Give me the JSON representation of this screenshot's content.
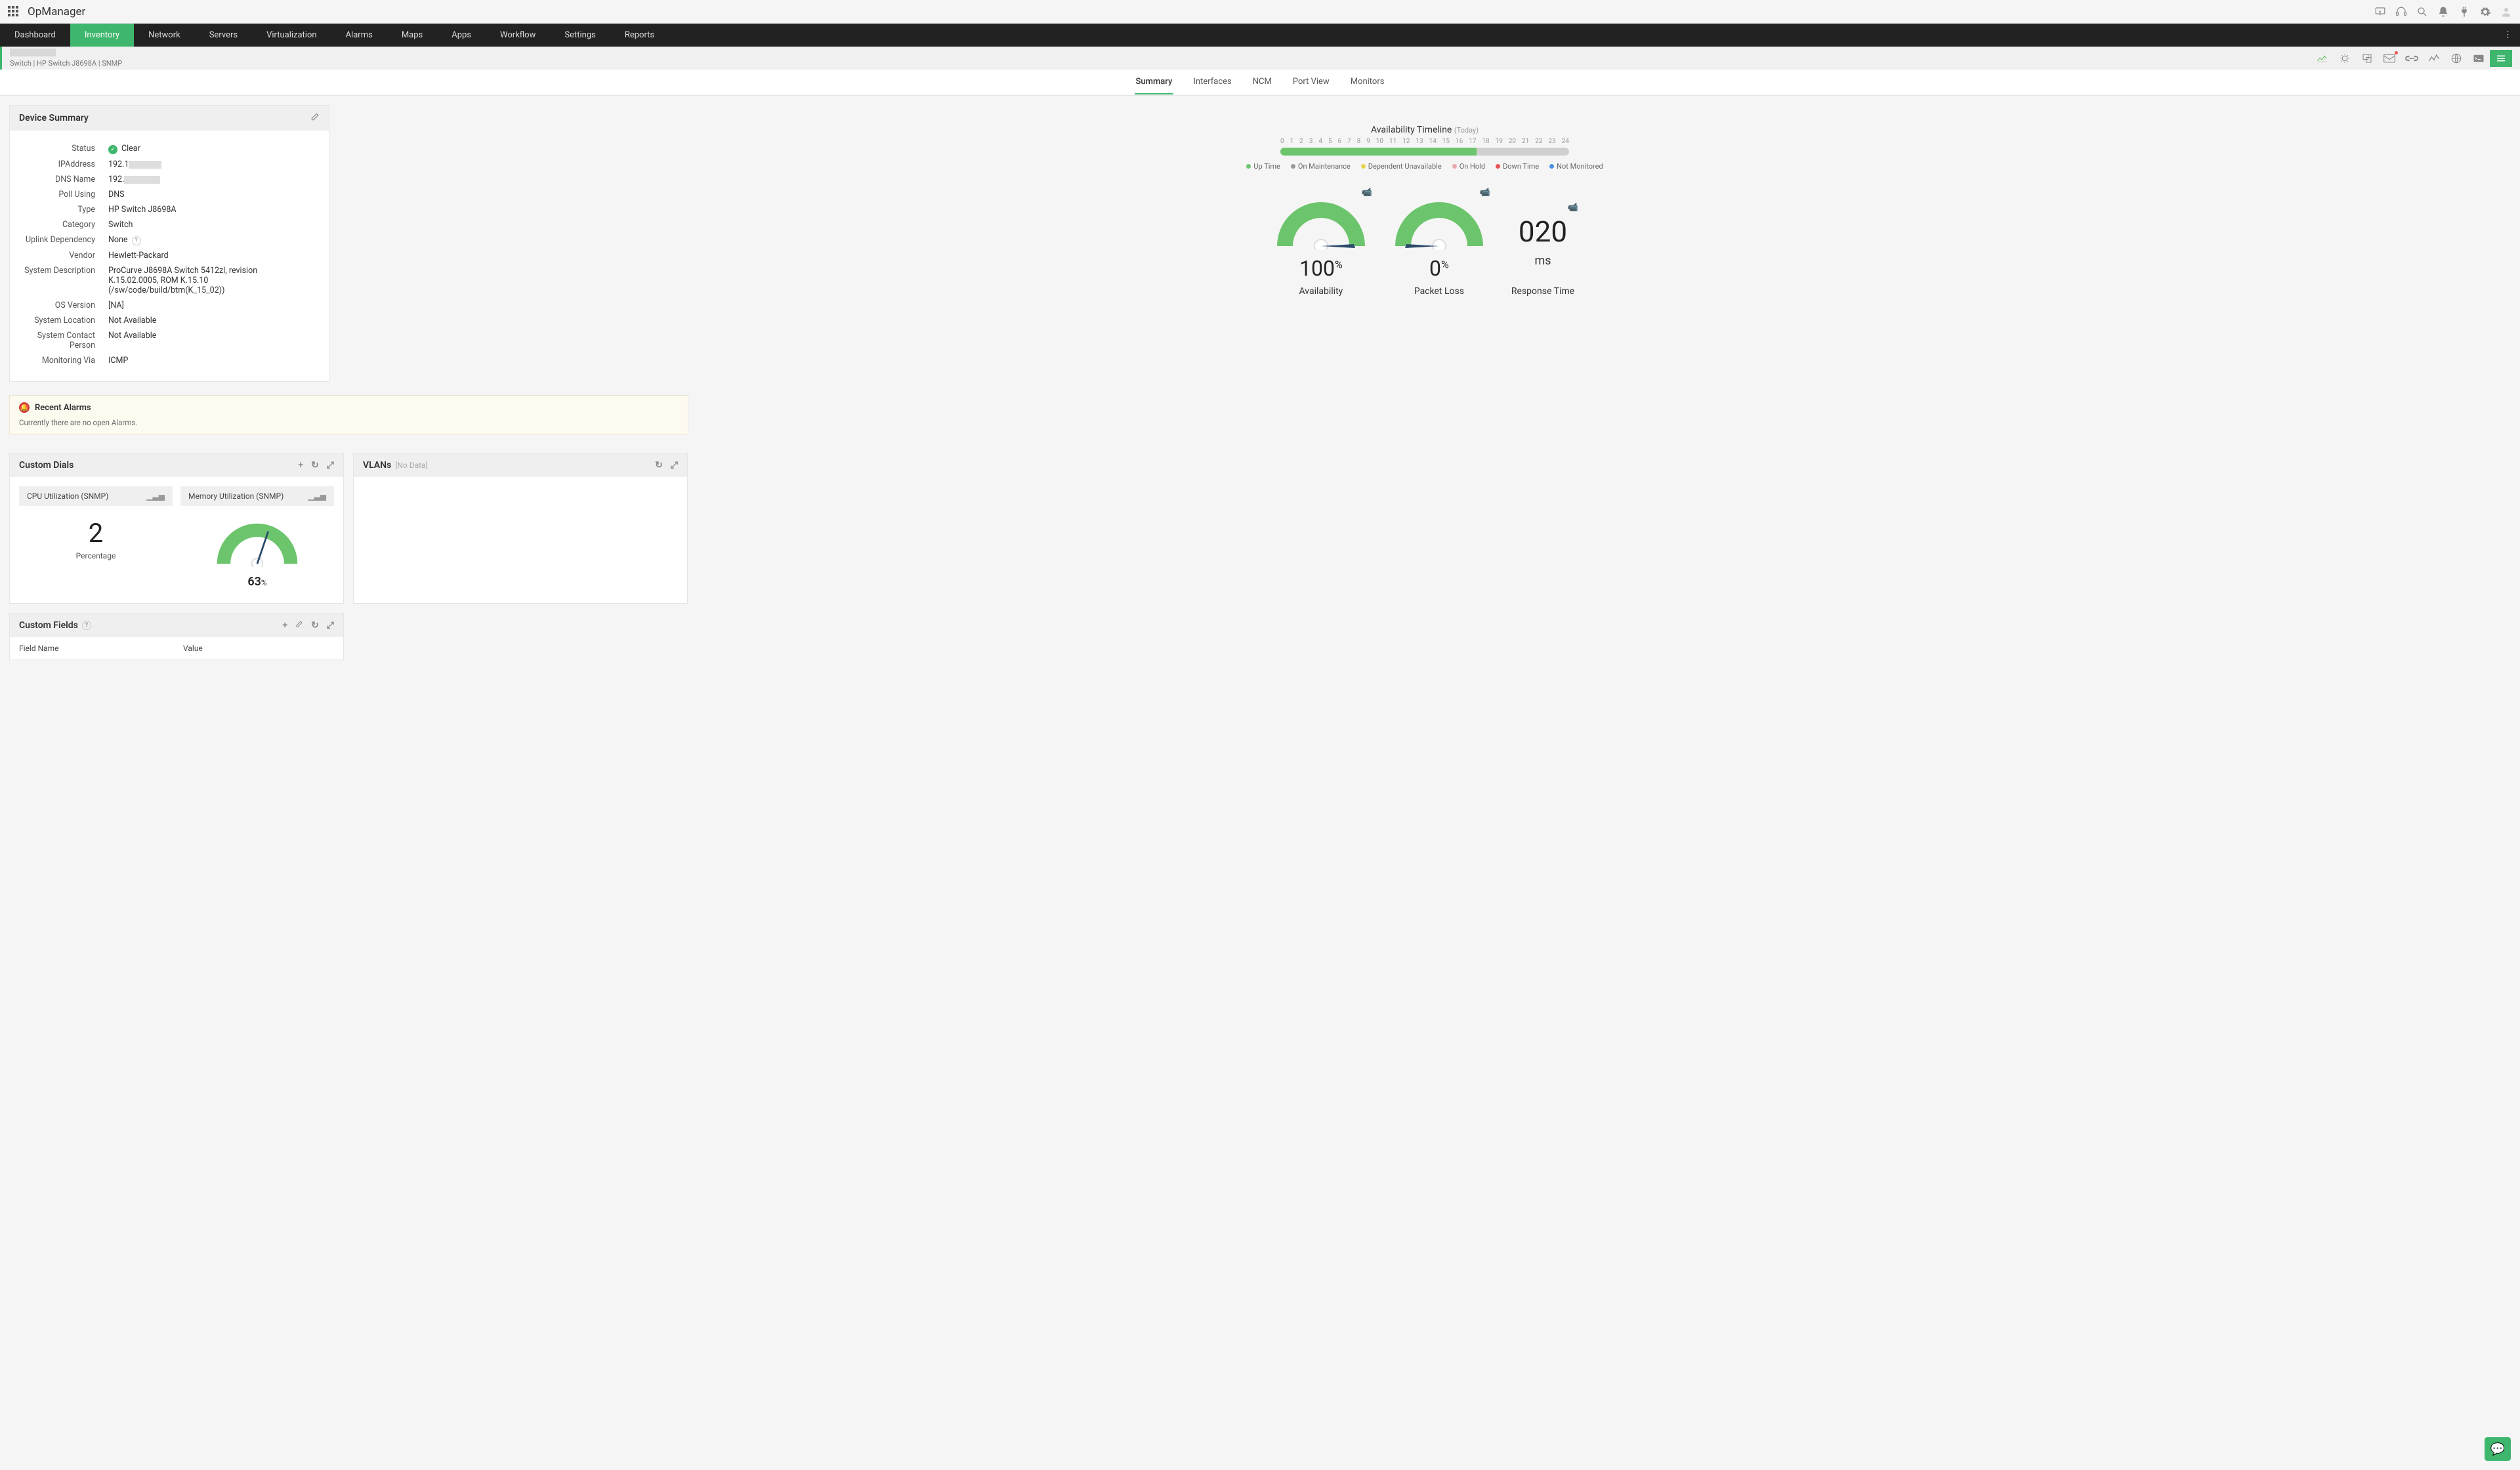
{
  "brand": "OpManager",
  "nav": [
    "Dashboard",
    "Inventory",
    "Network",
    "Servers",
    "Virtualization",
    "Alarms",
    "Maps",
    "Apps",
    "Workflow",
    "Settings",
    "Reports"
  ],
  "nav_active": 1,
  "breadcrumb": "Switch | HP Switch J8698A  | SNMP",
  "subtabs": [
    "Summary",
    "Interfaces",
    "NCM",
    "Port View",
    "Monitors"
  ],
  "subtab_active": 0,
  "device_summary": {
    "title": "Device Summary",
    "rows": {
      "status_label": "Status",
      "status_value": "Clear",
      "ip_label": "IPAddress",
      "ip_prefix": "192.1",
      "dns_label": "DNS Name",
      "dns_prefix": "192.",
      "poll_label": "Poll Using",
      "poll_value": "DNS",
      "type_label": "Type",
      "type_value": "HP Switch J8698A",
      "cat_label": "Category",
      "cat_value": "Switch",
      "uplink_label": "Uplink Dependency",
      "uplink_value": "None",
      "vendor_label": "Vendor",
      "vendor_value": "Hewlett-Packard",
      "sysdesc_label": "System Description",
      "sysdesc_value": "ProCurve J8698A Switch 5412zl, revision K.15.02.0005, ROM K.15.10 (/sw/code/build/btm(K_15_02))",
      "osver_label": "OS Version",
      "osver_value": "[NA]",
      "sysloc_label": "System Location",
      "sysloc_value": "Not Available",
      "syscon_label": "System Contact Person",
      "syscon_value": "Not Available",
      "monvia_label": "Monitoring Via",
      "monvia_value": "ICMP"
    }
  },
  "availability": {
    "title": "Availability Timeline",
    "period": "(Today)",
    "hours": [
      "0",
      "1",
      "2",
      "3",
      "4",
      "5",
      "6",
      "7",
      "8",
      "9",
      "10",
      "11",
      "12",
      "13",
      "14",
      "15",
      "16",
      "17",
      "18",
      "19",
      "20",
      "21",
      "22",
      "23",
      "24"
    ],
    "up_pct": 68,
    "legend": [
      {
        "label": "Up Time",
        "color": "#6cc56c"
      },
      {
        "label": "On Maintenance",
        "color": "#999999"
      },
      {
        "label": "Dependent Unavailable",
        "color": "#e8d44a"
      },
      {
        "label": "On Hold",
        "color": "#e8a9a9"
      },
      {
        "label": "Down Time",
        "color": "#e55353"
      },
      {
        "label": "Not Monitored",
        "color": "#4a90e2"
      }
    ]
  },
  "gauges": {
    "avail": {
      "value": "100",
      "unit": "%",
      "label": "Availability",
      "angle": 180,
      "color": "#6cc56c"
    },
    "pktloss": {
      "value": "0",
      "unit": "%",
      "label": "Packet Loss",
      "angle": 180,
      "color": "#6cc56c"
    },
    "rt": {
      "value": "020",
      "unit": "ms",
      "label": "Response Time"
    }
  },
  "recent_alarms": {
    "title": "Recent Alarms",
    "msg": "Currently there are no open Alarms."
  },
  "custom_dials": {
    "title": "Custom Dials",
    "cpu": {
      "header": "CPU Utilization (SNMP)",
      "value": "2",
      "sub": "Percentage"
    },
    "mem": {
      "header": "Memory Utilization (SNMP)",
      "value": "63",
      "unit": "%",
      "angle": 113,
      "color": "#6cc56c"
    }
  },
  "vlans": {
    "title": "VLANs",
    "nodata": "[No Data]"
  },
  "custom_fields": {
    "title": "Custom Fields",
    "col1": "Field Name",
    "col2": "Value"
  },
  "colors": {
    "accent": "#3fb66d"
  }
}
